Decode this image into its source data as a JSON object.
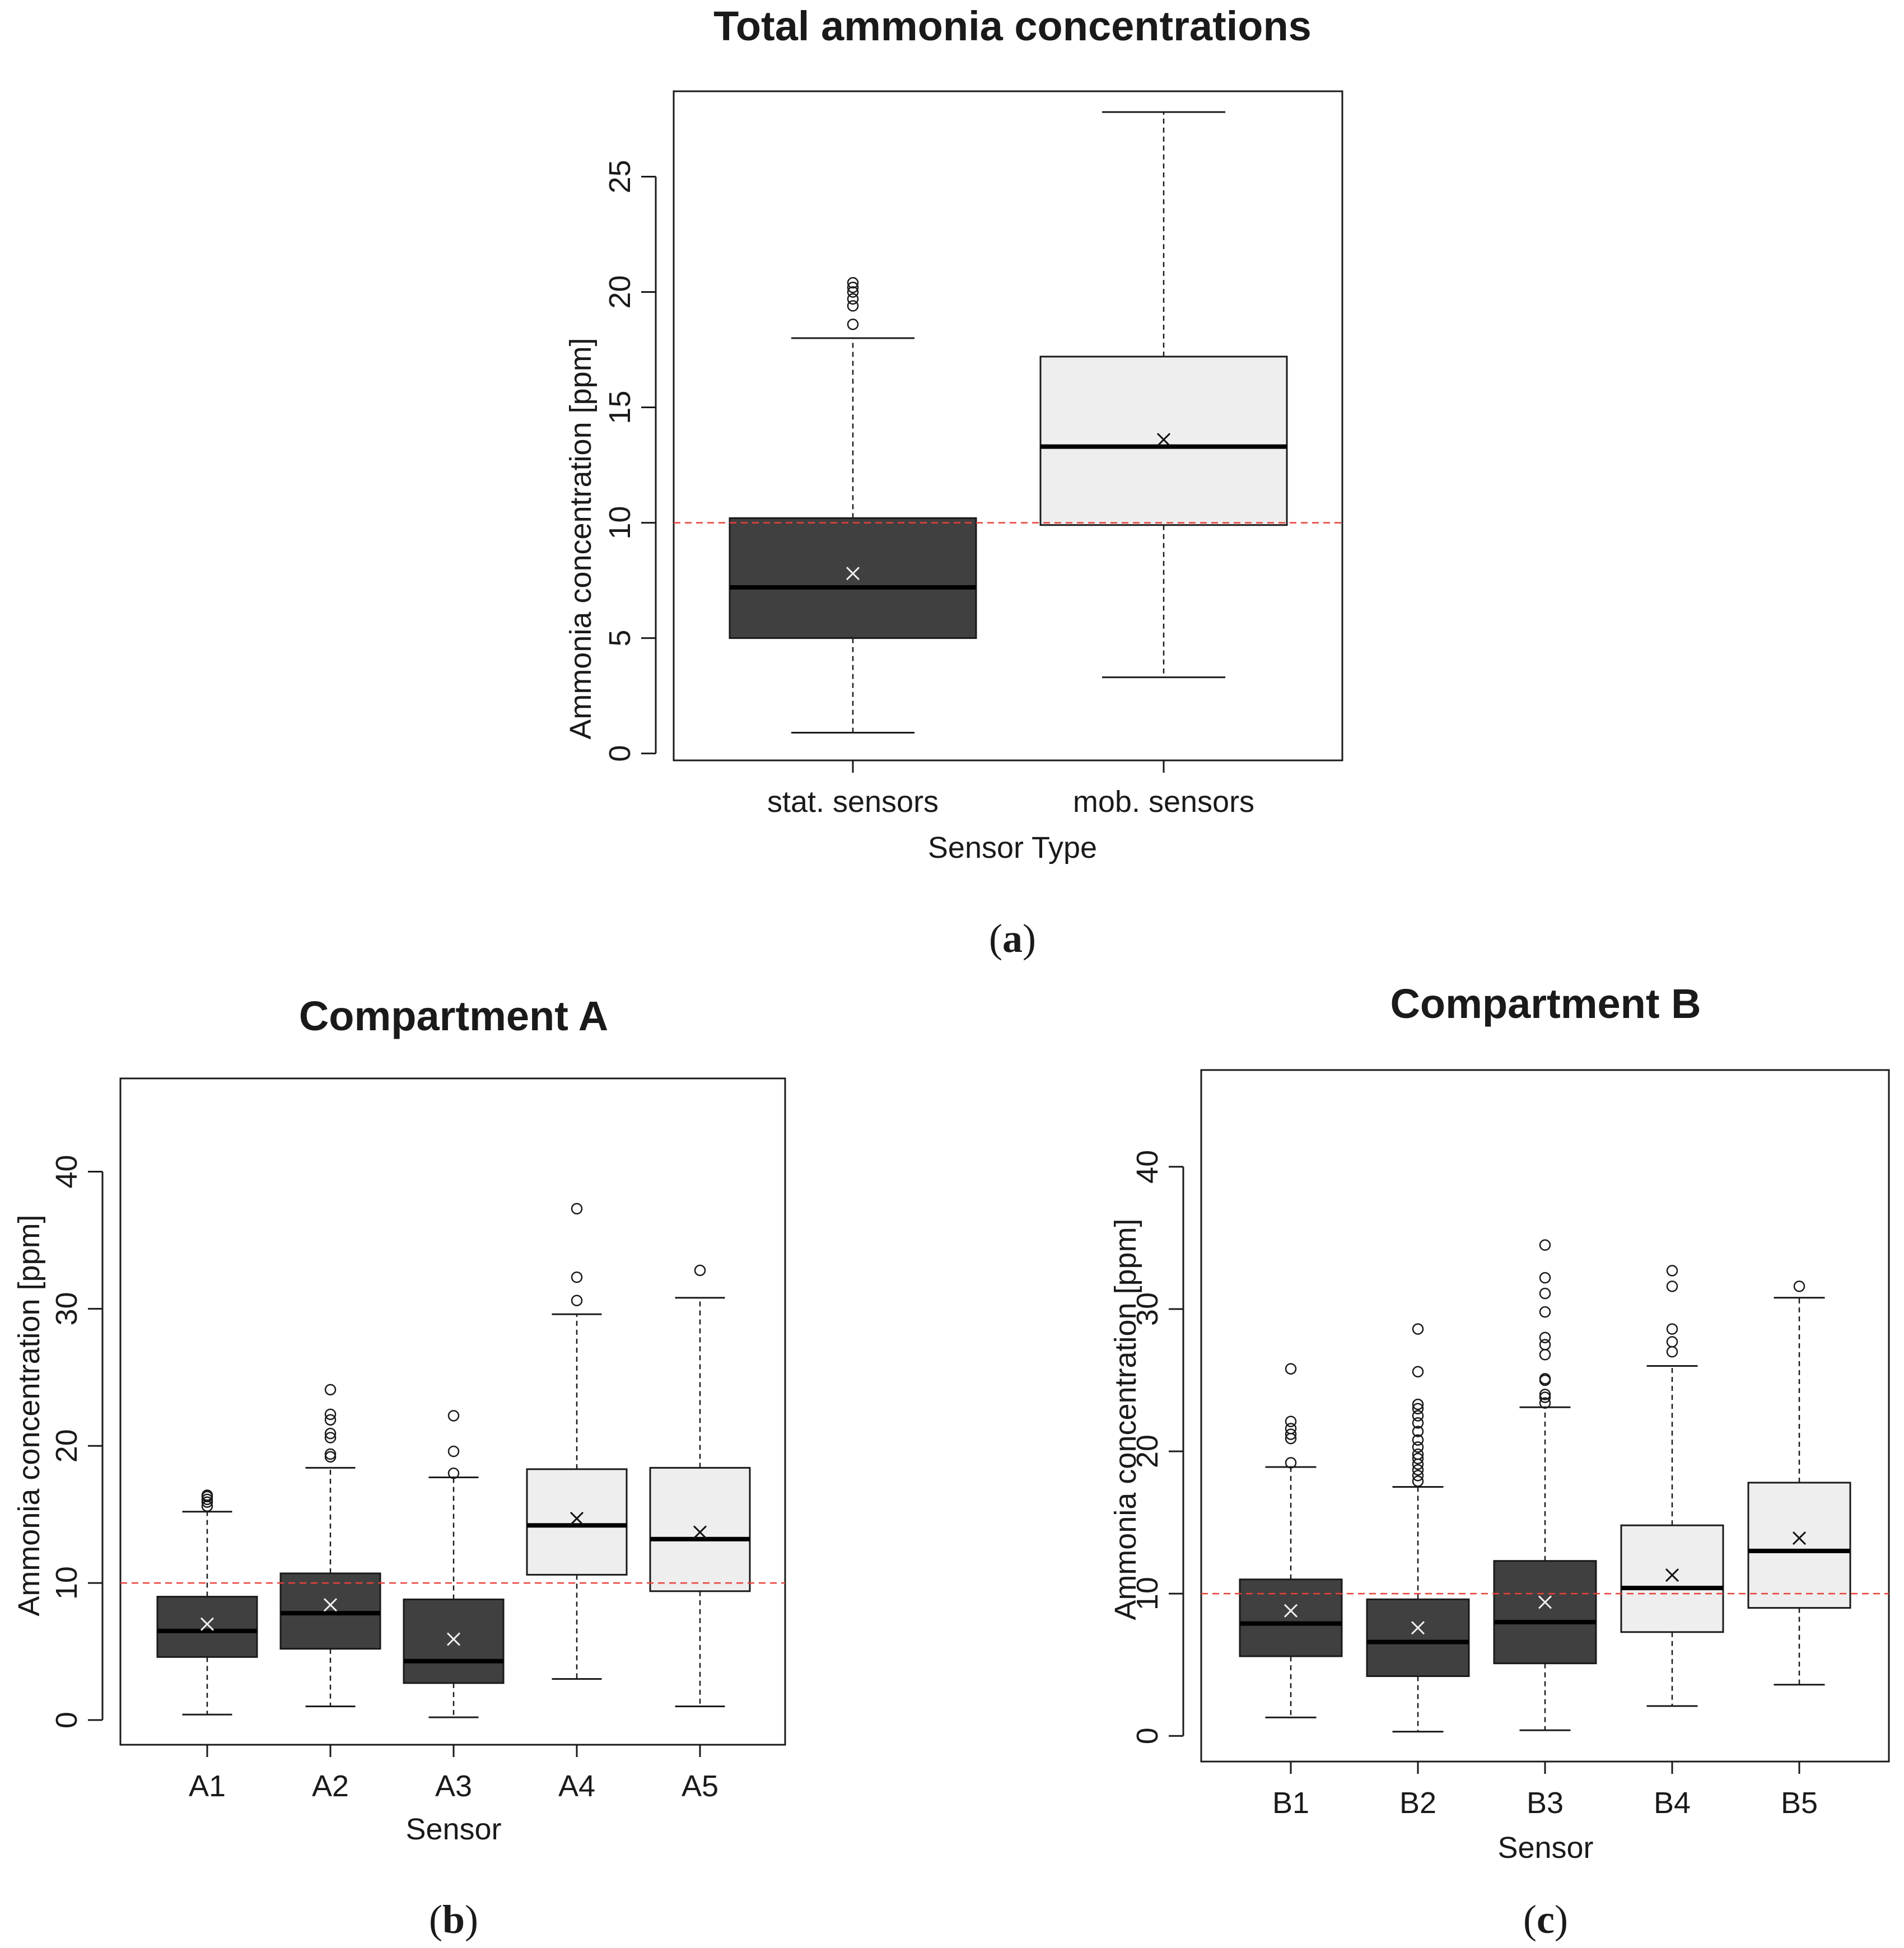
{
  "colors": {
    "stationary_fill": "#404040",
    "mobile_fill": "#eeeeee",
    "threshold_line": "#e8403a",
    "frame": "#1a1a1a"
  },
  "captions": [
    {
      "open": "(",
      "letter": "a",
      "close": ")"
    },
    {
      "open": "(",
      "letter": "b",
      "close": ")"
    },
    {
      "open": "(",
      "letter": "c",
      "close": ")"
    }
  ],
  "chart_data": [
    {
      "id": "a",
      "type": "boxplot",
      "title": "Total ammonia concentrations",
      "xlabel": "Sensor Type",
      "ylabel": "Ammonia concentration [ppm]",
      "ylim": [
        -0.3,
        28.7
      ],
      "yticks": [
        0,
        5,
        10,
        15,
        20,
        25
      ],
      "threshold": 10,
      "categories": [
        "stat. sensors",
        "mob. sensors"
      ],
      "boxes": [
        {
          "label": "stat. sensors",
          "group": "stationary",
          "whisker_low": 0.9,
          "q1": 5.0,
          "median": 7.2,
          "q3": 10.2,
          "whisker_high": 18.0,
          "mean": 7.8,
          "outliers": [
            18.6,
            19.4,
            19.7,
            20.0,
            20.2,
            20.4
          ]
        },
        {
          "label": "mob. sensors",
          "group": "mobile",
          "whisker_low": 3.3,
          "q1": 9.9,
          "median": 13.3,
          "q3": 17.2,
          "whisker_high": 27.8,
          "mean": 13.6,
          "outliers": []
        }
      ]
    },
    {
      "id": "b",
      "type": "boxplot",
      "title": "Compartment A",
      "xlabel": "Sensor",
      "ylabel": "Ammonia concentration [ppm]",
      "ylim": [
        -1.8,
        46.8
      ],
      "yticks": [
        0,
        10,
        20,
        30,
        40
      ],
      "threshold": 10,
      "categories": [
        "A1",
        "A2",
        "A3",
        "A4",
        "A5"
      ],
      "boxes": [
        {
          "label": "A1",
          "group": "stationary",
          "whisker_low": 0.4,
          "q1": 4.6,
          "median": 6.5,
          "q3": 9.0,
          "whisker_high": 15.2,
          "mean": 7.0,
          "outliers": [
            15.6,
            15.9,
            16.1,
            16.3,
            16.4
          ]
        },
        {
          "label": "A2",
          "group": "stationary",
          "whisker_low": 1.0,
          "q1": 5.2,
          "median": 7.8,
          "q3": 10.7,
          "whisker_high": 18.4,
          "mean": 8.4,
          "outliers": [
            19.2,
            19.4,
            20.6,
            20.9,
            21.9,
            22.3,
            24.1
          ]
        },
        {
          "label": "A3",
          "group": "stationary",
          "whisker_low": 0.2,
          "q1": 2.7,
          "median": 4.3,
          "q3": 8.8,
          "whisker_high": 17.7,
          "mean": 5.9,
          "outliers": [
            18.0,
            19.6,
            22.2
          ]
        },
        {
          "label": "A4",
          "group": "mobile",
          "whisker_low": 3.0,
          "q1": 10.6,
          "median": 14.2,
          "q3": 18.3,
          "whisker_high": 29.6,
          "mean": 14.7,
          "outliers": [
            30.6,
            32.3,
            37.3
          ]
        },
        {
          "label": "A5",
          "group": "mobile",
          "whisker_low": 1.0,
          "q1": 9.4,
          "median": 13.2,
          "q3": 18.4,
          "whisker_high": 30.8,
          "mean": 13.7,
          "outliers": [
            32.8
          ]
        }
      ]
    },
    {
      "id": "c",
      "type": "boxplot",
      "title": "Compartment B",
      "xlabel": "Sensor",
      "ylabel": "Ammonia concentration [ppm]",
      "ylim": [
        -1.8,
        46.8
      ],
      "yticks": [
        0,
        10,
        20,
        30,
        40
      ],
      "threshold": 10,
      "categories": [
        "B1",
        "B2",
        "B3",
        "B4",
        "B5"
      ],
      "boxes": [
        {
          "label": "B1",
          "group": "stationary",
          "whisker_low": 1.3,
          "q1": 5.6,
          "median": 7.9,
          "q3": 11.0,
          "whisker_high": 18.9,
          "mean": 8.8,
          "outliers": [
            19.2,
            20.9,
            21.2,
            21.6,
            22.1,
            25.8
          ]
        },
        {
          "label": "B2",
          "group": "stationary",
          "whisker_low": 0.3,
          "q1": 4.2,
          "median": 6.6,
          "q3": 9.6,
          "whisker_high": 17.5,
          "mean": 7.6,
          "outliers": [
            17.9,
            18.3,
            18.7,
            19.1,
            19.5,
            19.8,
            20.3,
            20.8,
            21.4,
            22.0,
            22.5,
            23.0,
            23.3,
            25.6,
            28.6
          ]
        },
        {
          "label": "B3",
          "group": "stationary",
          "whisker_low": 0.4,
          "q1": 5.1,
          "median": 8.0,
          "q3": 12.3,
          "whisker_high": 23.1,
          "mean": 9.4,
          "outliers": [
            23.4,
            23.8,
            24.0,
            25.0,
            25.1,
            26.8,
            27.5,
            28.0,
            29.8,
            31.1,
            32.2,
            34.5
          ]
        },
        {
          "label": "B4",
          "group": "mobile",
          "whisker_low": 2.1,
          "q1": 7.3,
          "median": 10.4,
          "q3": 14.8,
          "whisker_high": 26.0,
          "mean": 11.3,
          "outliers": [
            27.0,
            27.7,
            28.6,
            31.6,
            32.7
          ]
        },
        {
          "label": "B5",
          "group": "mobile",
          "whisker_low": 3.6,
          "q1": 9.0,
          "median": 13.0,
          "q3": 17.8,
          "whisker_high": 30.8,
          "mean": 13.9,
          "outliers": [
            31.6
          ]
        }
      ]
    }
  ]
}
